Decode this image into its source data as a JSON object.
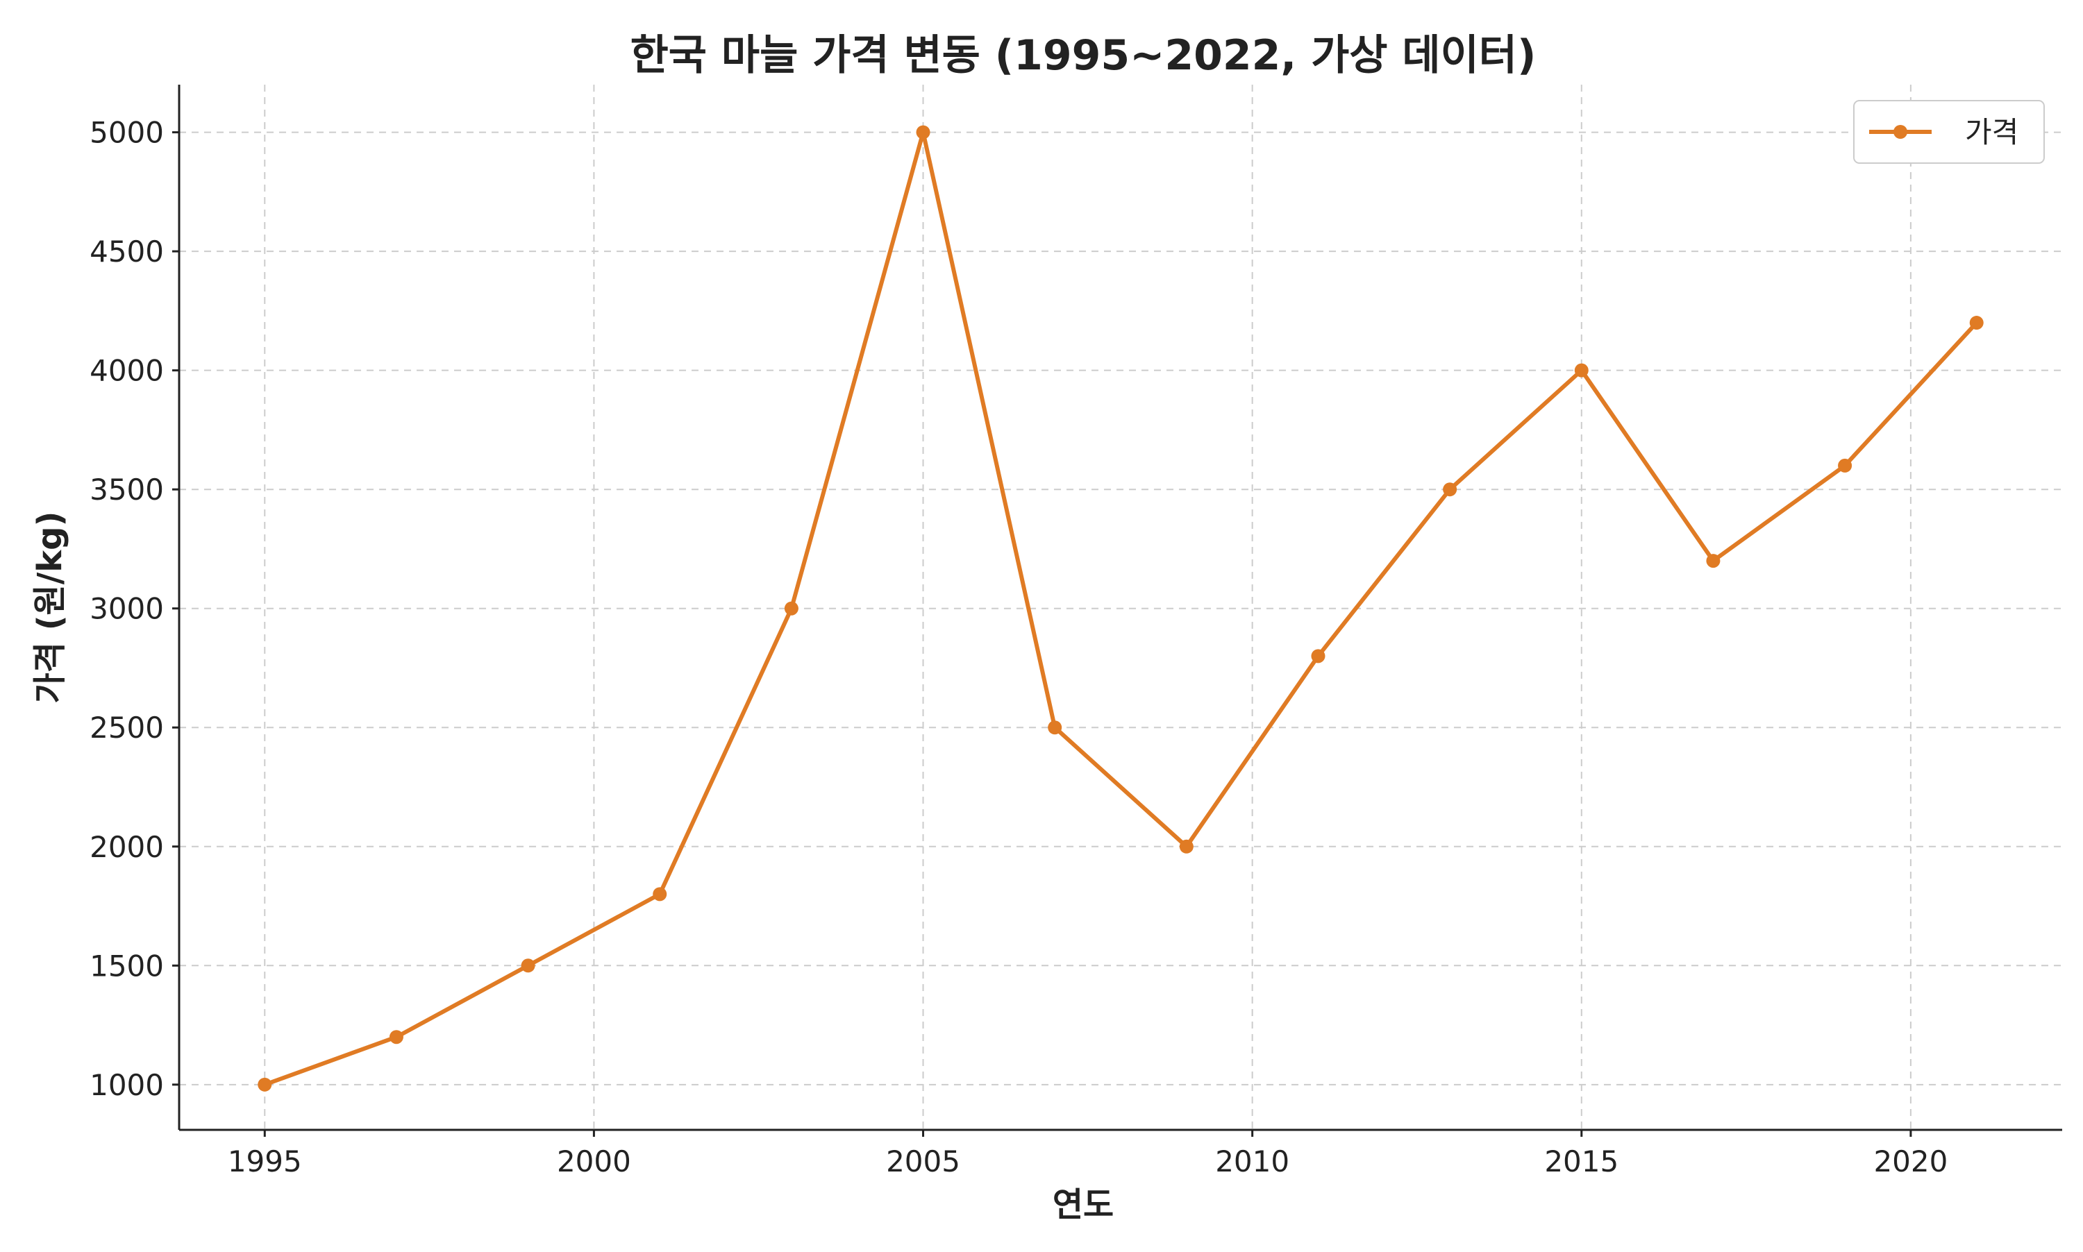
{
  "chart_data": {
    "type": "line",
    "title": "한국 마늘 가격 변동 (1995~2022, 가상 데이터)",
    "xlabel": "연도",
    "ylabel": "가격 (원/kg)",
    "x": [
      1995,
      1997,
      1999,
      2001,
      2003,
      2005,
      2007,
      2009,
      2011,
      2013,
      2015,
      2017,
      2019,
      2021
    ],
    "series": [
      {
        "name": "가격",
        "color": "#e07b24",
        "values": [
          1000,
          1200,
          1500,
          1800,
          3000,
          5000,
          2500,
          2000,
          2800,
          3500,
          4000,
          3200,
          3600,
          4200
        ]
      }
    ],
    "xlim": [
      1993.7,
      2022.3
    ],
    "ylim": [
      810,
      5200
    ],
    "xticks": [
      "1995",
      "2000",
      "2005",
      "2010",
      "2015",
      "2020"
    ],
    "yticks": [
      "1000",
      "1500",
      "2000",
      "2500",
      "3000",
      "3500",
      "4000",
      "4500",
      "5000"
    ],
    "grid": true,
    "legend_position": "top-right"
  }
}
